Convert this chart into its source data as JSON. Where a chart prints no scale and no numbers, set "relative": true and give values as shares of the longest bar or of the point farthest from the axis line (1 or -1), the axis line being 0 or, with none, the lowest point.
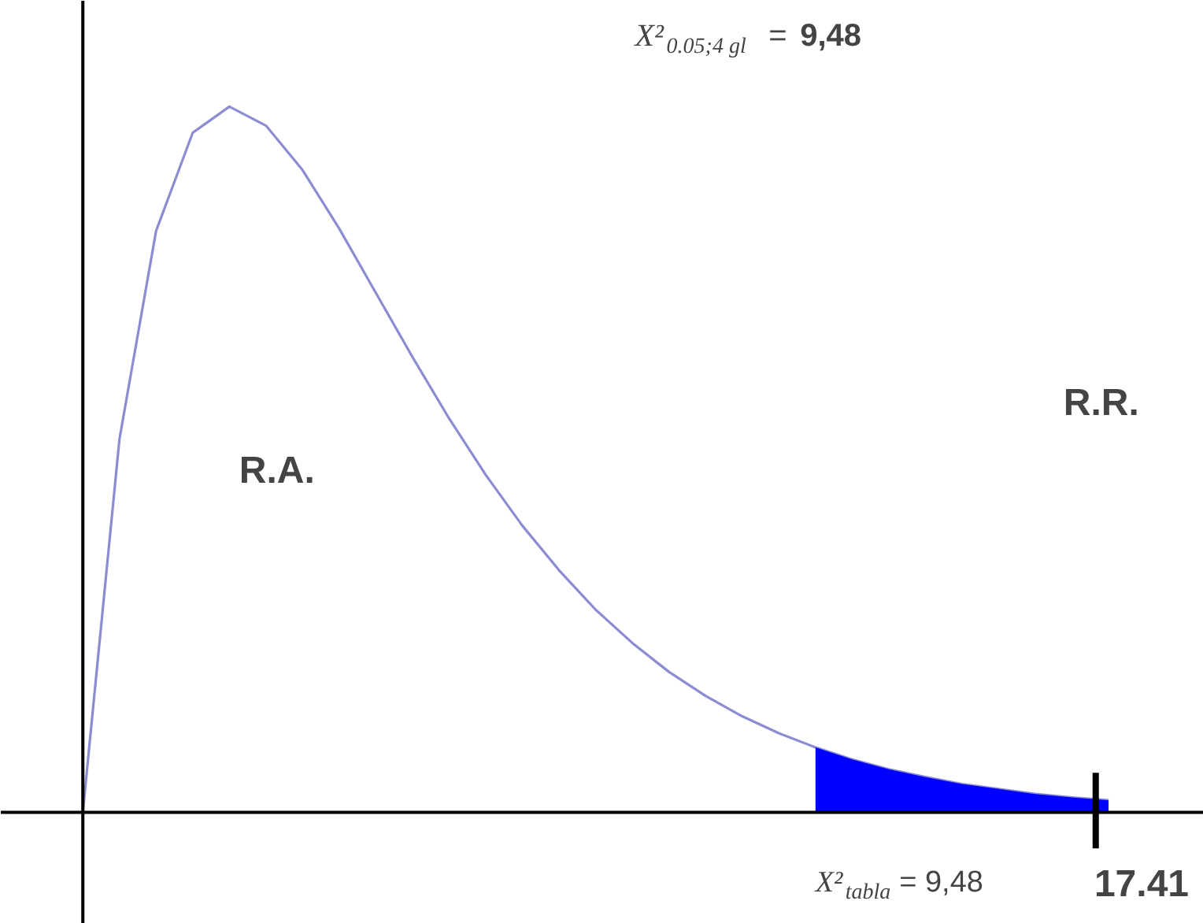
{
  "chart_data": {
    "type": "line",
    "relative": true,
    "title": "X²$_{0.05;4 gl}$ = 9,48",
    "categories": [
      null,
      null,
      null,
      null,
      null,
      null,
      null,
      null,
      null,
      null,
      null,
      null,
      null,
      null,
      null,
      null,
      null,
      null,
      null,
      null,
      null,
      null,
      null,
      null,
      null,
      null,
      null,
      null,
      null
    ],
    "series": [
      {
        "color": "#8c8cd2",
        "values": [
          0,
          0.529,
          0.824,
          0.963,
          1,
          0.973,
          0.91,
          0.827,
          0.736,
          0.645,
          0.558,
          0.478,
          0.406,
          0.343,
          0.287,
          0.24,
          0.199,
          0.165,
          0.136,
          0.112,
          0.092,
          0.075,
          0.061,
          0.05,
          0.04,
          0.033,
          0.026,
          0.021,
          0.017
        ]
      },
      {
        "type": "area",
        "color": "#0000ff",
        "values": [
          null,
          null,
          null,
          null,
          null,
          null,
          null,
          null,
          null,
          null,
          null,
          null,
          null,
          null,
          null,
          null,
          null,
          null,
          null,
          null,
          0.092,
          0.075,
          0.061,
          0.05,
          0.04,
          0.033,
          0.026,
          0.021,
          0.017
        ]
      }
    ],
    "annotations": [
      "R.A.",
      "R.R.",
      "X²$_{tabla}$ = 9,48",
      "17.41"
    ],
    "grid": false
  }
}
